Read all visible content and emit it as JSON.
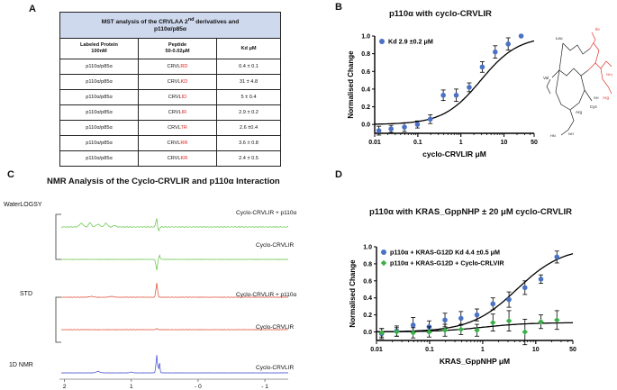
{
  "panel_a": {
    "letter": "A",
    "table_title_1": "MST analysis of the CRVLAA 2",
    "table_title_sup": "nd",
    "table_title_2": " derivatives and",
    "table_title_3": "p110α/p85α",
    "col1_l1": "Labeled Protein",
    "col1_l2": "100nM",
    "col2_l1": "Peptide",
    "col2_l2": "50-0.02μM",
    "col3": "Kd μM",
    "rows": [
      {
        "protein": "p110α/p85α",
        "prefix": "CRVL",
        "suffix": "RD",
        "kd": "0.4 ± 0.1"
      },
      {
        "protein": "p110α/p85α",
        "prefix": "CRVL",
        "suffix": "KD",
        "kd": "31 ± 4.8"
      },
      {
        "protein": "p110α/p85α",
        "prefix": "CRVL",
        "suffix": "ID",
        "kd": "5 ± 0.4"
      },
      {
        "protein": "p110α/p85α",
        "prefix": "CRVL",
        "suffix": "IR",
        "kd": "2.9 ± 0.2"
      },
      {
        "protein": "p110α/p85α",
        "prefix": "CRVL",
        "suffix": "TR",
        "kd": "2.6 ±0.4"
      },
      {
        "protein": "p110α/p85α",
        "prefix": "CRVL",
        "suffix": "RR",
        "kd": "3.6 ± 0.8"
      },
      {
        "protein": "p110α/p85α",
        "prefix": "CRVL",
        "suffix": "KR",
        "kd": "2.4 ± 0.5"
      }
    ]
  },
  "panel_b": {
    "letter": "B",
    "structure_labels": {
      "leu": "Leu",
      "ile": "Ile",
      "arg_red": "Arg",
      "val": "Val",
      "cys": "Cys",
      "arg": "Arg",
      "sh": "SH",
      "hn": "HN",
      "nh2": "NH₂",
      "nh": "NH"
    }
  },
  "panel_c": {
    "letter": "C",
    "title": "NMR Analysis of the Cyclo-CRVLIR and p110α Interaction",
    "groups": {
      "waterlogsy": "WaterLOGSY",
      "std": "STD",
      "nmr1d": "1D NMR"
    },
    "trace_labels": {
      "t1": "Cyclo-CRVLIR + p110α",
      "t2": "Cyclo-CRVLIR",
      "t3": "Cyclo-CRVLIR + p110α",
      "t4": "Cyclo-CRVLIR",
      "t5": "Cyclo-CRVLIR"
    },
    "ppm_ticks": [
      "2",
      "1",
      "- 0",
      "- 1"
    ],
    "colors": {
      "waterlogsy": "#5cc23c",
      "std": "#e0442a",
      "nmr1d": "#3a46d0"
    }
  },
  "panel_d": {
    "letter": "D"
  },
  "chart_data": [
    {
      "id": "panel-b",
      "type": "scatter",
      "title": "p110α with cyclo-CRVLIR",
      "xlabel": "cyclo-CRVLIR μM",
      "ylabel": "Normalised Change",
      "xscale": "log",
      "xlim": [
        0.01,
        50
      ],
      "ylim": [
        -0.1,
        1.0
      ],
      "xticks": [
        0.01,
        0.1,
        1,
        10,
        50
      ],
      "xtick_labels": [
        "0.01",
        "0.1",
        "1",
        "10",
        "50"
      ],
      "yticks": [
        0.0,
        0.2,
        0.4,
        0.6,
        0.8,
        1.0
      ],
      "ytick_labels": [
        "0.0",
        "0.2",
        "0.4",
        "0.6",
        "0.8",
        "1.0"
      ],
      "legend": "top-left",
      "series": [
        {
          "name": "Kd 2.9 ±0.2 μM",
          "color": "#4a72c4",
          "fit_kd": 2.9,
          "x": [
            0.0125,
            0.024,
            0.049,
            0.098,
            0.195,
            0.39,
            0.78,
            1.56,
            3.13,
            6.25,
            12.5,
            25
          ],
          "y": [
            -0.07,
            -0.05,
            -0.03,
            0.0,
            0.06,
            0.33,
            0.33,
            0.42,
            0.65,
            0.82,
            0.91,
            1.0
          ],
          "err": [
            0.05,
            0.04,
            0.05,
            0.04,
            0.05,
            0.06,
            0.07,
            0.05,
            0.06,
            0.07,
            0.07,
            0.0
          ]
        }
      ]
    },
    {
      "id": "panel-d",
      "type": "scatter",
      "title": "p110α with KRAS_GppNHP ± 20 μM cyclo-CRVLIR",
      "xlabel": "KRAS_GppNHP μM",
      "ylabel": "Normalised Change",
      "xscale": "log",
      "xlim": [
        0.01,
        50
      ],
      "ylim": [
        -0.1,
        1.0
      ],
      "xticks": [
        0.01,
        0.1,
        1,
        10,
        50
      ],
      "xtick_labels": [
        "0.01",
        "0.1",
        "1",
        "10",
        "50"
      ],
      "yticks": [
        0.0,
        0.2,
        0.4,
        0.6,
        0.8,
        1.0
      ],
      "ytick_labels": [
        "0.0",
        "0.2",
        "0.4",
        "0.6",
        "0.8",
        "1.0"
      ],
      "legend": "top-left",
      "series": [
        {
          "name": "p110α + KRAS-G12D   Kd 4.4 ±0.5 μM",
          "color": "#4a72c4",
          "marker": "circle",
          "fit_kd": 4.4,
          "x": [
            0.0125,
            0.024,
            0.049,
            0.098,
            0.195,
            0.39,
            0.78,
            1.56,
            3.13,
            6.25,
            12.5,
            25
          ],
          "y": [
            -0.02,
            0.01,
            0.08,
            0.06,
            0.14,
            0.16,
            0.2,
            0.33,
            0.38,
            0.52,
            0.62,
            0.88
          ],
          "err": [
            0.06,
            0.06,
            0.09,
            0.07,
            0.08,
            0.08,
            0.07,
            0.07,
            0.09,
            0.08,
            0.05,
            0.07
          ]
        },
        {
          "name": "p110α + KRAS-G12D + Cyclo-CRLVIR",
          "color": "#3ab048",
          "marker": "diamond",
          "fit_plateau": 0.11,
          "x": [
            0.0125,
            0.024,
            0.049,
            0.098,
            0.195,
            0.39,
            0.78,
            1.56,
            3.13,
            6.25,
            12.5,
            25
          ],
          "y": [
            -0.01,
            0.0,
            -0.01,
            0.0,
            0.02,
            0.03,
            0.02,
            0.11,
            0.13,
            0.0,
            0.12,
            0.14
          ],
          "err": [
            0.05,
            0.05,
            0.06,
            0.06,
            0.07,
            0.06,
            0.07,
            0.1,
            0.12,
            0.15,
            0.08,
            0.11
          ]
        }
      ]
    }
  ]
}
